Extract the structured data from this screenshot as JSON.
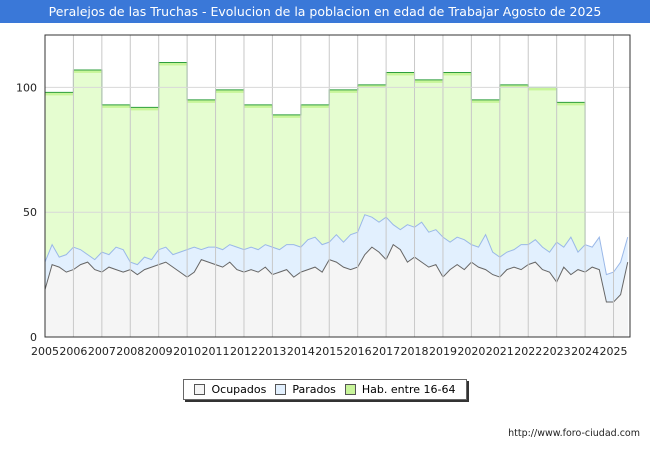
{
  "title": "Peralejos de las Truchas - Evolucion de la poblacion en edad de Trabajar Agosto de 2025",
  "url": "http://www.foro-ciudad.com",
  "colors": {
    "title_bg": "#3a78d8",
    "hab_fill": "#e5fdd0",
    "hab_line": "#2e9e3e",
    "par_fill": "#e2f0fe",
    "par_line": "#9ab8e8",
    "ocu_fill": "#f5f5f5",
    "ocu_line": "#666666"
  },
  "chart_data": {
    "type": "area",
    "title": "Peralejos de las Truchas - Evolucion de la poblacion en edad de Trabajar Agosto de 2025",
    "xlim": [
      2005,
      2025.58
    ],
    "ylim": [
      0,
      121
    ],
    "yticks": [
      0,
      50,
      100
    ],
    "xticks": [
      "2005",
      "2006",
      "2007",
      "2008",
      "2009",
      "2010",
      "2011",
      "2012",
      "2013",
      "2014",
      "2015",
      "2016",
      "2017",
      "2018",
      "2019",
      "2020",
      "2021",
      "2022",
      "2023",
      "2024",
      "2025"
    ],
    "grid": true,
    "legend": {
      "position": "bottom",
      "entries": [
        "Ocupados",
        "Parados",
        "Hab. entre 16-64"
      ]
    },
    "hab": {
      "name": "Hab. entre 16-64",
      "years": [
        2005,
        2006,
        2007,
        2008,
        2009,
        2010,
        2011,
        2012,
        2013,
        2014,
        2015,
        2016,
        2017,
        2018,
        2019,
        2020,
        2021,
        2022,
        2023
      ],
      "values": [
        98,
        107,
        93,
        92,
        110,
        95,
        99,
        93,
        89,
        93,
        99,
        101,
        106,
        103,
        106,
        95,
        101,
        100,
        94
      ]
    },
    "x_start": 2005,
    "x_step": 0.25,
    "ocupados": {
      "name": "Ocupados",
      "values": [
        19,
        29,
        28,
        26,
        27,
        29,
        30,
        27,
        26,
        28,
        27,
        26,
        27,
        25,
        27,
        28,
        29,
        30,
        28,
        26,
        24,
        26,
        31,
        30,
        29,
        28,
        30,
        27,
        26,
        27,
        26,
        28,
        25,
        26,
        27,
        24,
        26,
        27,
        28,
        26,
        31,
        30,
        28,
        27,
        28,
        33,
        36,
        34,
        31,
        37,
        35,
        30,
        32,
        30,
        28,
        29,
        24,
        27,
        29,
        27,
        30,
        28,
        27,
        25,
        24,
        27,
        28,
        27,
        29,
        30,
        27,
        26,
        22,
        28,
        25,
        27,
        26,
        28,
        27,
        14,
        14,
        17,
        30
      ]
    },
    "parados": {
      "name": "Parados",
      "values": [
        11,
        8,
        4,
        7,
        9,
        6,
        3,
        4,
        8,
        5,
        9,
        9,
        3,
        4,
        5,
        3,
        6,
        6,
        5,
        8,
        11,
        10,
        4,
        6,
        7,
        7,
        7,
        9,
        9,
        9,
        9,
        9,
        11,
        9,
        10,
        13,
        10,
        12,
        12,
        11,
        7,
        11,
        10,
        14,
        14,
        16,
        12,
        12,
        17,
        8,
        8,
        15,
        12,
        16,
        14,
        14,
        16,
        11,
        11,
        12,
        7,
        8,
        14,
        9,
        8,
        7,
        7,
        10,
        8,
        9,
        9,
        8,
        16,
        8,
        15,
        7,
        11,
        8,
        13,
        11,
        12,
        13,
        10
      ]
    }
  }
}
